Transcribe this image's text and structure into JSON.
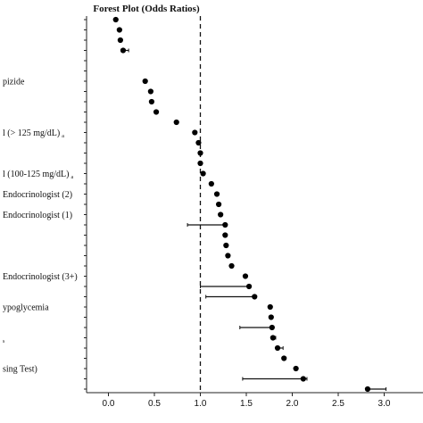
{
  "chart_data": {
    "type": "forest",
    "title": "Forest Plot (Odds Ratios)",
    "xlim": [
      -0.2,
      3.35
    ],
    "xticks": [
      "0.0",
      "0.5",
      "1.0",
      "1.5",
      "2.0",
      "2.5",
      "3.0"
    ],
    "xtick_values": [
      0,
      0.5,
      1.0,
      1.5,
      2.0,
      2.5,
      3.0
    ],
    "reference_line": 1.0,
    "grid": false,
    "visible_row_labels": [
      {
        "row": 7,
        "text": "pizide",
        "sub": ""
      },
      {
        "row": 12,
        "text": "l (> 125 mg/dL)",
        "sub": "a"
      },
      {
        "row": 16,
        "text": "l (100-125 mg/dL)",
        "sub": "a"
      },
      {
        "row": 18,
        "text": "Endocrinologist (2)",
        "sub": ""
      },
      {
        "row": 20,
        "text": "Endocrinologist (1)",
        "sub": ""
      },
      {
        "row": 26,
        "text": "Endocrinologist (3+)",
        "sub": ""
      },
      {
        "row": 29,
        "text": "ypoglycemia",
        "sub": ""
      },
      {
        "row": 32,
        "text": "",
        "sub": "s"
      },
      {
        "row": 35,
        "text": "sing Test)",
        "sub": ""
      }
    ],
    "points": [
      {
        "row": 1,
        "or": 0.08,
        "lo": null,
        "hi": null
      },
      {
        "row": 2,
        "or": 0.12,
        "lo": null,
        "hi": null
      },
      {
        "row": 3,
        "or": 0.13,
        "lo": null,
        "hi": null
      },
      {
        "row": 4,
        "or": 0.16,
        "lo": 0.14,
        "hi": 0.22
      },
      {
        "row": 7,
        "or": 0.4,
        "lo": null,
        "hi": null
      },
      {
        "row": 8,
        "or": 0.46,
        "lo": null,
        "hi": null
      },
      {
        "row": 9,
        "or": 0.47,
        "lo": null,
        "hi": null
      },
      {
        "row": 10,
        "or": 0.52,
        "lo": null,
        "hi": null
      },
      {
        "row": 11,
        "or": 0.74,
        "lo": null,
        "hi": null
      },
      {
        "row": 12,
        "or": 0.94,
        "lo": null,
        "hi": null
      },
      {
        "row": 13,
        "or": 0.98,
        "lo": null,
        "hi": null
      },
      {
        "row": 14,
        "or": 1.0,
        "lo": null,
        "hi": null
      },
      {
        "row": 15,
        "or": 1.0,
        "lo": null,
        "hi": null
      },
      {
        "row": 16,
        "or": 1.03,
        "lo": null,
        "hi": null
      },
      {
        "row": 17,
        "or": 1.12,
        "lo": null,
        "hi": null
      },
      {
        "row": 18,
        "or": 1.18,
        "lo": null,
        "hi": null
      },
      {
        "row": 19,
        "or": 1.2,
        "lo": null,
        "hi": null
      },
      {
        "row": 20,
        "or": 1.22,
        "lo": null,
        "hi": null
      },
      {
        "row": 21,
        "or": 1.27,
        "lo": 0.86,
        "hi": 1.27
      },
      {
        "row": 22,
        "or": 1.27,
        "lo": null,
        "hi": null
      },
      {
        "row": 23,
        "or": 1.28,
        "lo": null,
        "hi": null
      },
      {
        "row": 24,
        "or": 1.3,
        "lo": null,
        "hi": null
      },
      {
        "row": 25,
        "or": 1.34,
        "lo": null,
        "hi": null
      },
      {
        "row": 26,
        "or": 1.49,
        "lo": null,
        "hi": null
      },
      {
        "row": 27,
        "or": 1.53,
        "lo": 1.0,
        "hi": 1.53
      },
      {
        "row": 28,
        "or": 1.59,
        "lo": 1.06,
        "hi": 1.59
      },
      {
        "row": 29,
        "or": 1.76,
        "lo": null,
        "hi": null
      },
      {
        "row": 30,
        "or": 1.77,
        "lo": null,
        "hi": null
      },
      {
        "row": 31,
        "or": 1.78,
        "lo": 1.43,
        "hi": 1.78
      },
      {
        "row": 32,
        "or": 1.79,
        "lo": 1.78,
        "hi": 1.82
      },
      {
        "row": 33,
        "or": 1.84,
        "lo": 1.84,
        "hi": 1.9
      },
      {
        "row": 34,
        "or": 1.91,
        "lo": null,
        "hi": null
      },
      {
        "row": 35,
        "or": 2.04,
        "lo": null,
        "hi": null
      },
      {
        "row": 36,
        "or": 2.12,
        "lo": 1.46,
        "hi": 2.16
      },
      {
        "row": 37,
        "or": 2.82,
        "lo": 2.8,
        "hi": 3.02
      }
    ],
    "row_count": 37
  }
}
